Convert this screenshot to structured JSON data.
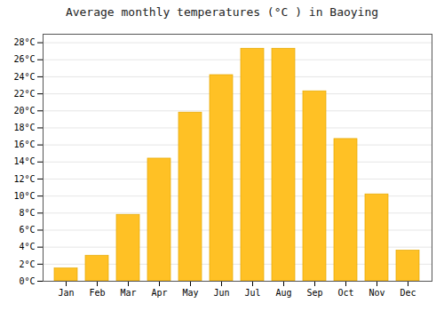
{
  "chart_data": {
    "type": "bar",
    "title": "Average monthly temperatures (°C ) in Baoying",
    "categories": [
      "Jan",
      "Feb",
      "Mar",
      "Apr",
      "May",
      "Jun",
      "Jul",
      "Aug",
      "Sep",
      "Oct",
      "Nov",
      "Dec"
    ],
    "values": [
      1.5,
      3.0,
      7.8,
      14.4,
      19.8,
      24.2,
      27.3,
      27.3,
      22.3,
      16.7,
      10.2,
      3.6
    ],
    "color": "#FFC125",
    "ylim": [
      0,
      29
    ],
    "yticks": [
      {
        "value": 0,
        "label": "0°C"
      },
      {
        "value": 2,
        "label": "2°C"
      },
      {
        "value": 4,
        "label": "4°C"
      },
      {
        "value": 6,
        "label": "6°C"
      },
      {
        "value": 8,
        "label": "8°C"
      },
      {
        "value": 10,
        "label": "10°C"
      },
      {
        "value": 12,
        "label": "12°C"
      },
      {
        "value": 14,
        "label": "14°C"
      },
      {
        "value": 16,
        "label": "16°C"
      },
      {
        "value": 18,
        "label": "18°C"
      },
      {
        "value": 20,
        "label": "20°C"
      },
      {
        "value": 22,
        "label": "22°C"
      },
      {
        "value": 24,
        "label": "24°C"
      },
      {
        "value": 26,
        "label": "26°C"
      },
      {
        "value": 28,
        "label": "28°C"
      }
    ],
    "grid": true
  }
}
